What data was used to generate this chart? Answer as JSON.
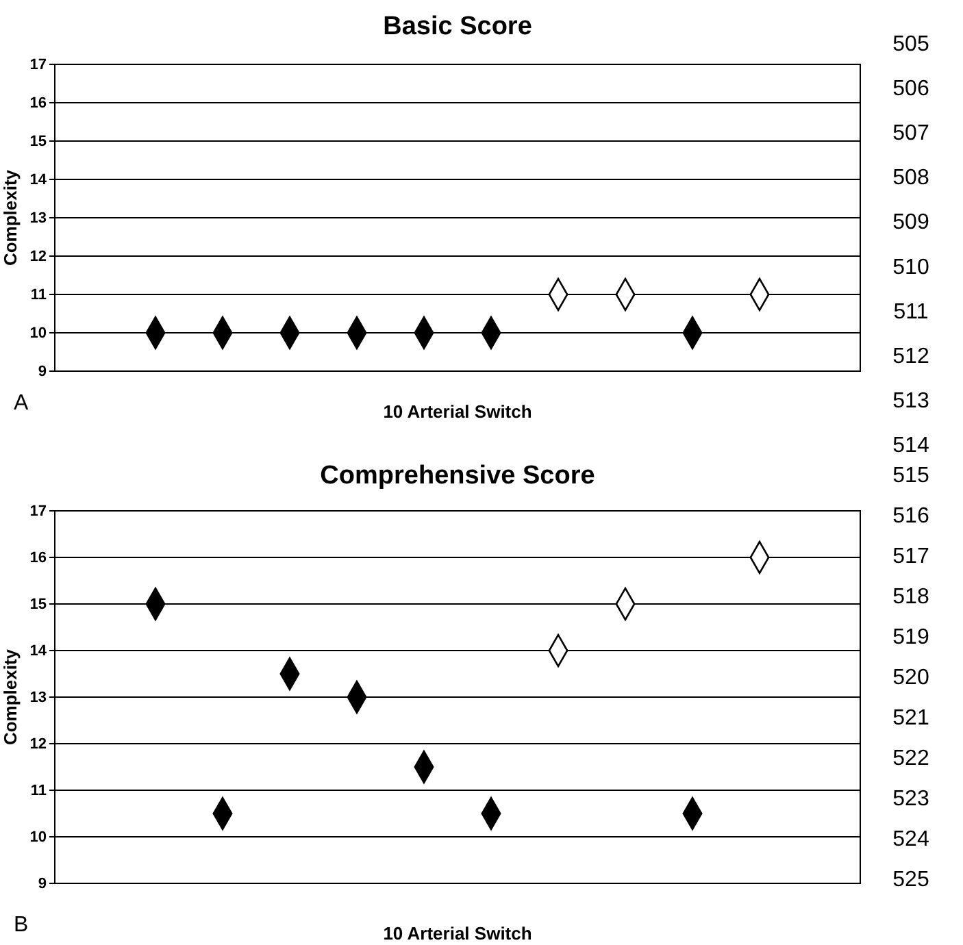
{
  "chart_data": [
    {
      "type": "scatter",
      "title": "Basic Score",
      "xlabel": "10 Arterial Switch",
      "ylabel": "Complexity",
      "categories": [
        null,
        null,
        null,
        null,
        null,
        null,
        null,
        null,
        null,
        null,
        null,
        null
      ],
      "series": [
        {
          "color": "#000000",
          "values": [
            null,
            10,
            10,
            10,
            10,
            10,
            10,
            null,
            null,
            10,
            null,
            null
          ]
        },
        {
          "color": "#ffffff",
          "values": [
            null,
            null,
            null,
            null,
            null,
            null,
            null,
            11,
            11,
            null,
            11,
            null
          ]
        }
      ],
      "ylim": [
        9,
        17
      ],
      "yticks": [
        9,
        10,
        11,
        12,
        13,
        14,
        15,
        16,
        17
      ],
      "grid": "y",
      "marker": "diamond",
      "annotations": [
        "A",
        "505",
        "506",
        "507",
        "508",
        "509",
        "510",
        "511",
        "512",
        "513",
        "514"
      ]
    },
    {
      "type": "scatter",
      "title": "Comprehensive Score",
      "xlabel": "10 Arterial Switch",
      "ylabel": "Complexity",
      "categories": [
        null,
        null,
        null,
        null,
        null,
        null,
        null,
        null,
        null,
        null,
        null,
        null
      ],
      "series": [
        {
          "color": "#000000",
          "values": [
            null,
            15,
            10.5,
            13.5,
            13,
            11.5,
            10.5,
            null,
            null,
            10.5,
            null,
            null
          ]
        },
        {
          "color": "#ffffff",
          "values": [
            null,
            null,
            null,
            null,
            null,
            null,
            null,
            14,
            15,
            null,
            16,
            null
          ]
        }
      ],
      "ylim": [
        9,
        17
      ],
      "yticks": [
        9,
        10,
        11,
        12,
        13,
        14,
        15,
        16,
        17
      ],
      "grid": "y",
      "marker": "diamond",
      "annotations": [
        "B",
        "515",
        "516",
        "517",
        "518",
        "519",
        "520",
        "521",
        "522",
        "523",
        "524",
        "525"
      ]
    }
  ]
}
